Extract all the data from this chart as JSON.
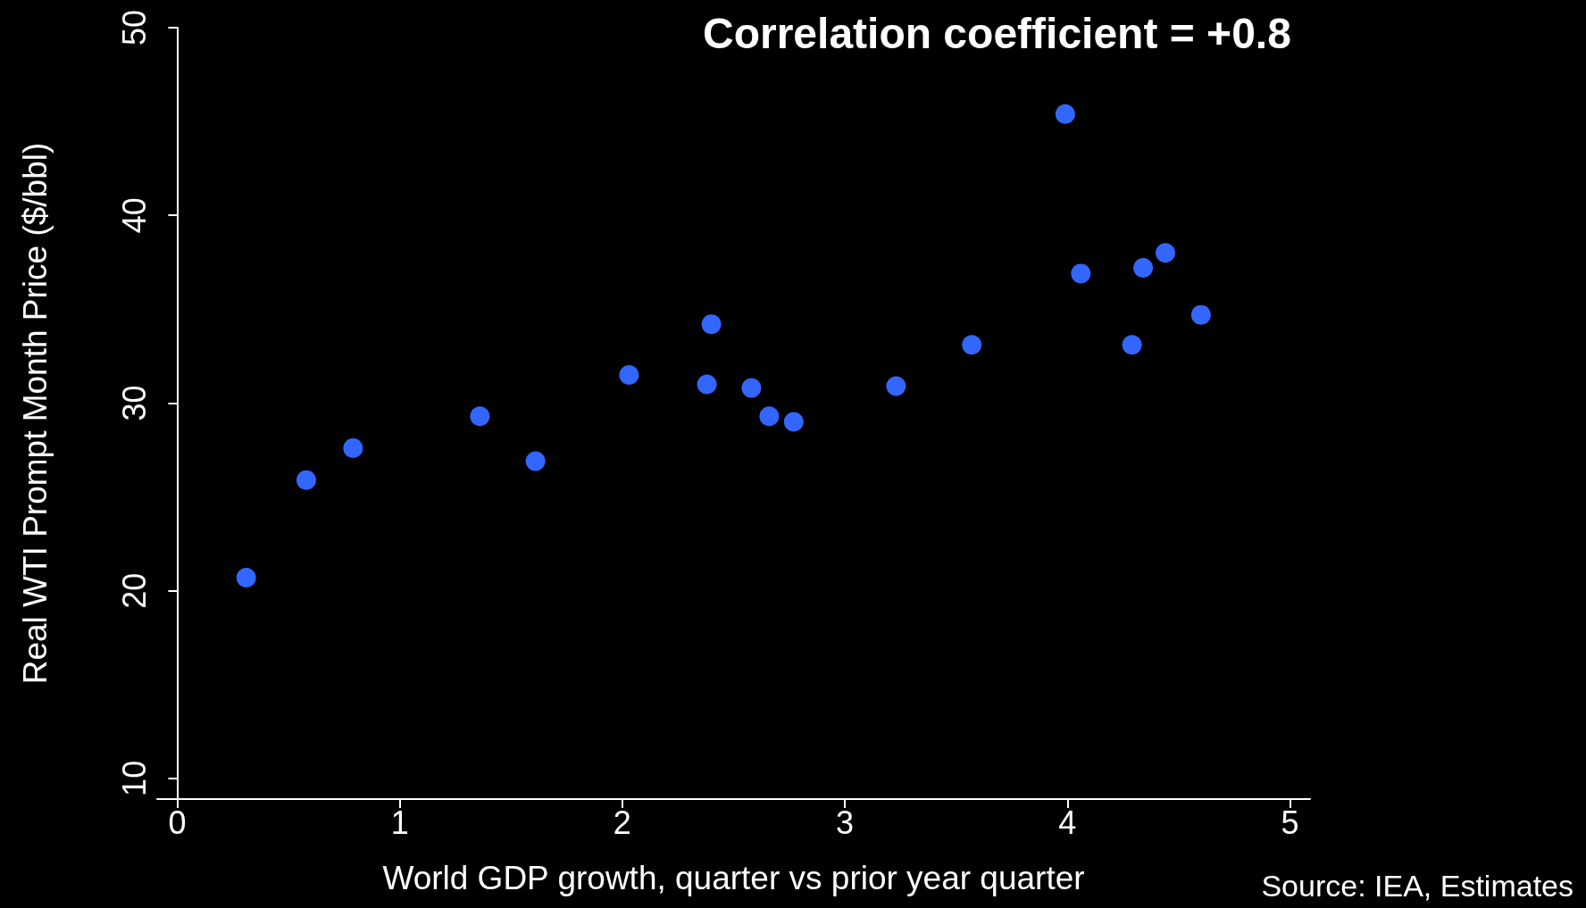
{
  "chart_data": {
    "type": "scatter",
    "title": "Correlation coefficient = +0.8",
    "xlabel": "World GDP growth, quarter vs prior year quarter",
    "ylabel": "Real WTI Prompt Month Price ($/bbl)",
    "annotations": [
      "Source: IEA, Estimates"
    ],
    "x": [
      0.31,
      0.58,
      0.79,
      1.36,
      1.61,
      2.03,
      2.38,
      2.4,
      2.58,
      2.66,
      2.77,
      3.23,
      3.57,
      3.99,
      4.06,
      4.29,
      4.34,
      4.44,
      4.6
    ],
    "series": [
      {
        "color": "#3366ff",
        "values": [
          20.7,
          25.9,
          27.6,
          29.3,
          26.9,
          31.5,
          31.0,
          34.2,
          30.8,
          29.3,
          29.0,
          30.9,
          33.1,
          45.4,
          36.9,
          33.1,
          37.2,
          38.0,
          34.7
        ]
      }
    ],
    "xlim": [
      -0.09,
      5.09
    ],
    "xticks": [
      0,
      1,
      2,
      3,
      4,
      5
    ],
    "ylim": [
      8.9,
      50
    ],
    "yticks": [
      10,
      20,
      30,
      40,
      50
    ],
    "grid": false,
    "marker": "circle"
  }
}
